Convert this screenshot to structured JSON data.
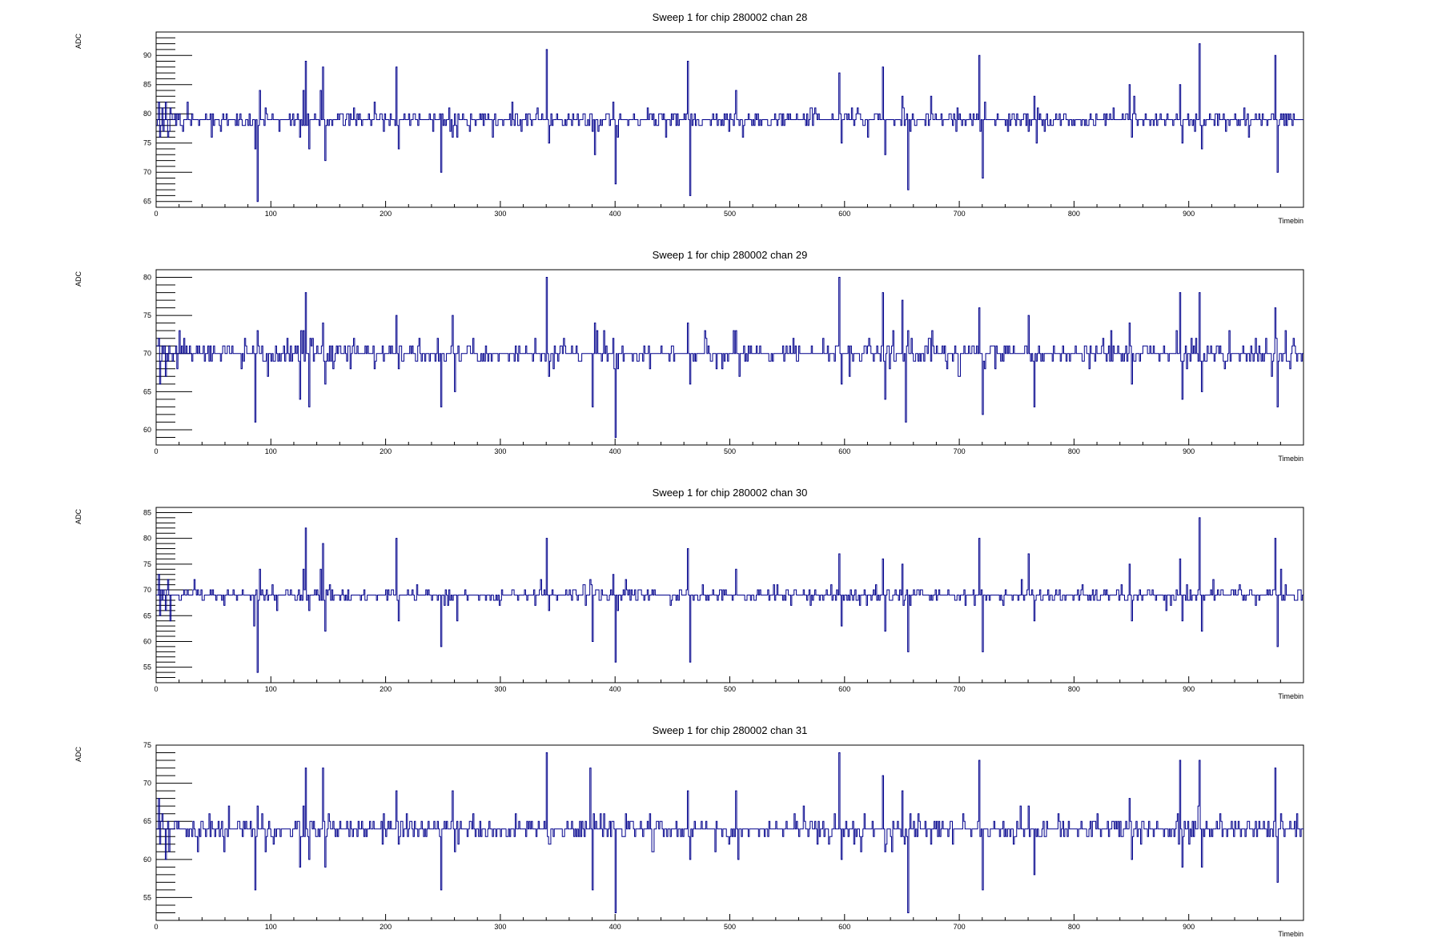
{
  "style": {
    "line_color": "#00008b",
    "axis_color": "#000000",
    "background": "#ffffff"
  },
  "chart_data": [
    {
      "type": "line",
      "title": "Sweep 1 for chip 280002 chan 28",
      "xlabel": "Timebin",
      "ylabel": "ADC",
      "xlim": [
        0,
        1000
      ],
      "ylim": [
        64,
        94
      ],
      "x_ticks": [
        0,
        100,
        200,
        300,
        400,
        500,
        600,
        700,
        800,
        900
      ],
      "y_ticks": [
        65,
        70,
        75,
        80,
        85,
        90
      ],
      "baseline": 79,
      "noise_amp": 1.3,
      "seed": 28,
      "spikes": [
        [
          2,
          82
        ],
        [
          3,
          76
        ],
        [
          5,
          81
        ],
        [
          6,
          77
        ],
        [
          8,
          82
        ],
        [
          10,
          76
        ],
        [
          12,
          81
        ],
        [
          86,
          74
        ],
        [
          88,
          65
        ],
        [
          90,
          84
        ],
        [
          125,
          76
        ],
        [
          128,
          84
        ],
        [
          130,
          89
        ],
        [
          133,
          74
        ],
        [
          143,
          84
        ],
        [
          145,
          88
        ],
        [
          147,
          72
        ],
        [
          172,
          81
        ],
        [
          207,
          79
        ],
        [
          209,
          88
        ],
        [
          211,
          74
        ],
        [
          248,
          70
        ],
        [
          255,
          81
        ],
        [
          262,
          76
        ],
        [
          340,
          91
        ],
        [
          342,
          75
        ],
        [
          380,
          77
        ],
        [
          382,
          73
        ],
        [
          398,
          82
        ],
        [
          400,
          68
        ],
        [
          402,
          76
        ],
        [
          440,
          80
        ],
        [
          463,
          89
        ],
        [
          465,
          66
        ],
        [
          505,
          84
        ],
        [
          511,
          76
        ],
        [
          530,
          79
        ],
        [
          595,
          87
        ],
        [
          597,
          75
        ],
        [
          630,
          80
        ],
        [
          633,
          88
        ],
        [
          635,
          73
        ],
        [
          650,
          83
        ],
        [
          655,
          67
        ],
        [
          657,
          77
        ],
        [
          675,
          83
        ],
        [
          700,
          80
        ],
        [
          717,
          90
        ],
        [
          720,
          69
        ],
        [
          722,
          82
        ],
        [
          760,
          77
        ],
        [
          765,
          83
        ],
        [
          767,
          75
        ],
        [
          848,
          85
        ],
        [
          850,
          76
        ],
        [
          852,
          83
        ],
        [
          875,
          80
        ],
        [
          892,
          85
        ],
        [
          894,
          75
        ],
        [
          909,
          92
        ],
        [
          911,
          74
        ],
        [
          975,
          90
        ],
        [
          977,
          70
        ],
        [
          980,
          80
        ]
      ]
    },
    {
      "type": "line",
      "title": "Sweep 1 for chip 280002 chan 29",
      "xlabel": "Timebin",
      "ylabel": "ADC",
      "xlim": [
        0,
        1000
      ],
      "ylim": [
        58,
        81
      ],
      "x_ticks": [
        0,
        100,
        200,
        300,
        400,
        500,
        600,
        700,
        800,
        900
      ],
      "y_ticks": [
        60,
        65,
        70,
        75,
        80
      ],
      "baseline": 70,
      "noise_amp": 1.1,
      "seed": 29,
      "spikes": [
        [
          2,
          72
        ],
        [
          3,
          66
        ],
        [
          5,
          71
        ],
        [
          8,
          67
        ],
        [
          86,
          61
        ],
        [
          88,
          73
        ],
        [
          125,
          64
        ],
        [
          128,
          73
        ],
        [
          130,
          78
        ],
        [
          133,
          63
        ],
        [
          145,
          74
        ],
        [
          147,
          66
        ],
        [
          205,
          71
        ],
        [
          209,
          75
        ],
        [
          211,
          68
        ],
        [
          248,
          63
        ],
        [
          258,
          75
        ],
        [
          260,
          65
        ],
        [
          340,
          80
        ],
        [
          342,
          67
        ],
        [
          380,
          63
        ],
        [
          382,
          74
        ],
        [
          398,
          72
        ],
        [
          400,
          59
        ],
        [
          402,
          68
        ],
        [
          463,
          74
        ],
        [
          465,
          66
        ],
        [
          505,
          73
        ],
        [
          595,
          80
        ],
        [
          597,
          66
        ],
        [
          633,
          78
        ],
        [
          635,
          64
        ],
        [
          650,
          77
        ],
        [
          653,
          61
        ],
        [
          655,
          73
        ],
        [
          717,
          76
        ],
        [
          720,
          62
        ],
        [
          760,
          75
        ],
        [
          765,
          63
        ],
        [
          848,
          74
        ],
        [
          850,
          66
        ],
        [
          892,
          78
        ],
        [
          894,
          64
        ],
        [
          909,
          78
        ],
        [
          911,
          65
        ],
        [
          975,
          76
        ],
        [
          977,
          63
        ],
        [
          984,
          73
        ],
        [
          988,
          68
        ]
      ]
    },
    {
      "type": "line",
      "title": "Sweep 1 for chip 280002 chan 30",
      "xlabel": "Timebin",
      "ylabel": "ADC",
      "xlim": [
        0,
        1000
      ],
      "ylim": [
        52,
        86
      ],
      "x_ticks": [
        0,
        100,
        200,
        300,
        400,
        500,
        600,
        700,
        800,
        900
      ],
      "y_ticks": [
        55,
        60,
        65,
        70,
        75,
        80,
        85
      ],
      "baseline": 69,
      "noise_amp": 1.4,
      "seed": 30,
      "spikes": [
        [
          2,
          73
        ],
        [
          3,
          65
        ],
        [
          6,
          70
        ],
        [
          8,
          66
        ],
        [
          10,
          72
        ],
        [
          12,
          64
        ],
        [
          85,
          63
        ],
        [
          88,
          54
        ],
        [
          90,
          74
        ],
        [
          125,
          68
        ],
        [
          128,
          74
        ],
        [
          130,
          82
        ],
        [
          133,
          66
        ],
        [
          143,
          74
        ],
        [
          145,
          79
        ],
        [
          147,
          62
        ],
        [
          209,
          80
        ],
        [
          211,
          64
        ],
        [
          248,
          59
        ],
        [
          262,
          64
        ],
        [
          340,
          80
        ],
        [
          342,
          66
        ],
        [
          378,
          72
        ],
        [
          380,
          60
        ],
        [
          398,
          73
        ],
        [
          400,
          56
        ],
        [
          402,
          66
        ],
        [
          463,
          78
        ],
        [
          465,
          56
        ],
        [
          505,
          74
        ],
        [
          595,
          77
        ],
        [
          597,
          63
        ],
        [
          633,
          76
        ],
        [
          635,
          62
        ],
        [
          650,
          75
        ],
        [
          655,
          58
        ],
        [
          657,
          67
        ],
        [
          717,
          80
        ],
        [
          720,
          58
        ],
        [
          760,
          77
        ],
        [
          765,
          64
        ],
        [
          848,
          75
        ],
        [
          850,
          64
        ],
        [
          892,
          76
        ],
        [
          894,
          64
        ],
        [
          909,
          84
        ],
        [
          911,
          62
        ],
        [
          975,
          80
        ],
        [
          977,
          59
        ],
        [
          980,
          74
        ]
      ]
    },
    {
      "type": "line",
      "title": "Sweep 1 for chip 280002 chan 31",
      "xlabel": "Timebin",
      "ylabel": "ADC",
      "xlim": [
        0,
        1000
      ],
      "ylim": [
        52,
        75
      ],
      "x_ticks": [
        0,
        100,
        200,
        300,
        400,
        500,
        600,
        700,
        800,
        900
      ],
      "y_ticks": [
        55,
        60,
        65,
        70,
        75
      ],
      "baseline": 64,
      "noise_amp": 1.1,
      "seed": 31,
      "spikes": [
        [
          2,
          68
        ],
        [
          3,
          62
        ],
        [
          5,
          66
        ],
        [
          8,
          60
        ],
        [
          10,
          65
        ],
        [
          86,
          56
        ],
        [
          88,
          67
        ],
        [
          125,
          59
        ],
        [
          128,
          67
        ],
        [
          130,
          72
        ],
        [
          133,
          60
        ],
        [
          145,
          72
        ],
        [
          147,
          59
        ],
        [
          209,
          69
        ],
        [
          211,
          62
        ],
        [
          248,
          56
        ],
        [
          258,
          69
        ],
        [
          260,
          61
        ],
        [
          340,
          74
        ],
        [
          342,
          62
        ],
        [
          378,
          72
        ],
        [
          380,
          56
        ],
        [
          400,
          53
        ],
        [
          402,
          64
        ],
        [
          463,
          69
        ],
        [
          465,
          60
        ],
        [
          505,
          69
        ],
        [
          507,
          60
        ],
        [
          595,
          74
        ],
        [
          597,
          60
        ],
        [
          633,
          71
        ],
        [
          635,
          61
        ],
        [
          650,
          69
        ],
        [
          655,
          53
        ],
        [
          657,
          66
        ],
        [
          717,
          73
        ],
        [
          720,
          56
        ],
        [
          760,
          67
        ],
        [
          765,
          58
        ],
        [
          848,
          68
        ],
        [
          850,
          60
        ],
        [
          892,
          73
        ],
        [
          894,
          59
        ],
        [
          909,
          73
        ],
        [
          911,
          59
        ],
        [
          975,
          72
        ],
        [
          977,
          57
        ],
        [
          980,
          66
        ]
      ]
    }
  ]
}
